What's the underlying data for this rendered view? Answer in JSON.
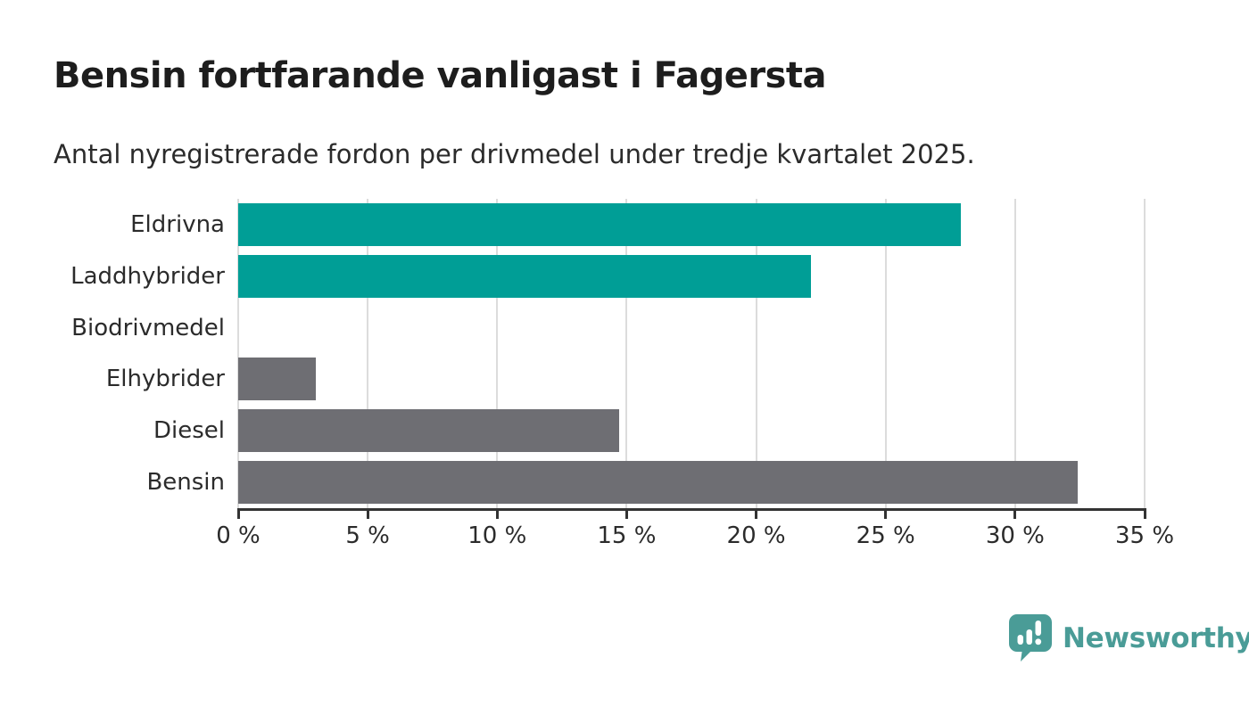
{
  "header": {
    "title": "Bensin fortfarande vanligast i Fagersta",
    "subtitle": "Antal nyregistrerade fordon per drivmedel under tredje kvartalet 2025."
  },
  "chart_data": {
    "type": "bar",
    "orientation": "horizontal",
    "title": "Bensin fortfarande vanligast i Fagersta",
    "subtitle": "Antal nyregistrerade fordon per drivmedel under tredje kvartalet 2025.",
    "categories": [
      "Eldrivna",
      "Laddhybrider",
      "Biodrivmedel",
      "Elhybrider",
      "Diesel",
      "Bensin"
    ],
    "values": [
      27.9,
      22.1,
      0,
      3.0,
      14.7,
      32.4
    ],
    "unit": "%",
    "bar_colors": [
      "#009e96",
      "#009e96",
      "#6e6e73",
      "#6e6e73",
      "#6e6e73",
      "#6e6e73"
    ],
    "xlim": [
      0,
      35
    ],
    "x_ticks": [
      0,
      5,
      10,
      15,
      20,
      25,
      30,
      35
    ],
    "x_tick_labels": [
      "0 %",
      "5 %",
      "10 %",
      "15 %",
      "20 %",
      "25 %",
      "30 %",
      "35 %"
    ],
    "xlabel": "",
    "ylabel": "",
    "grid": "vertical-only",
    "legend": "none"
  },
  "colors": {
    "accent_teal": "#009e96",
    "neutral_gray": "#6e6e73",
    "gridline": "#dcdcdc",
    "axis": "#333333",
    "title_text": "#1d1d1d",
    "body_text": "#2b2b2b",
    "brand_teal": "#4a9c97"
  },
  "branding": {
    "logo_text": "Newsworthy",
    "logo_icon": "speech-bubble-bar-chart-exclamation"
  }
}
